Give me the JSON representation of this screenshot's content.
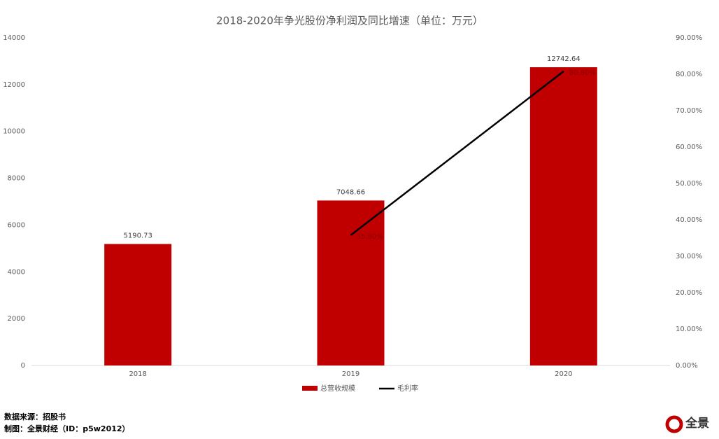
{
  "chart_data": {
    "type": "bar-line",
    "title": "2018-2020年争光股份净利润及同比增速（单位：万元）",
    "categories": [
      "2018",
      "2019",
      "2020"
    ],
    "series": [
      {
        "name": "总营收规模",
        "type": "bar",
        "color": "#c00000",
        "values": [
          5190.73,
          7048.66,
          12742.64
        ]
      },
      {
        "name": "毛利率",
        "type": "line",
        "axis": "y2",
        "color": "#000000",
        "values": [
          null,
          35.8,
          80.8
        ],
        "value_labels": [
          null,
          "35.80%",
          "80.80%"
        ]
      }
    ],
    "ylim": [
      0,
      14000
    ],
    "yticks": [
      0,
      2000,
      4000,
      6000,
      8000,
      10000,
      12000,
      14000
    ],
    "y2lim": [
      0,
      90
    ],
    "y2ticks": [
      {
        "value": 0,
        "label": "0.00%"
      },
      {
        "value": 10,
        "label": "10.00%"
      },
      {
        "value": 20,
        "label": "20.00%"
      },
      {
        "value": 30,
        "label": "30.00%"
      },
      {
        "value": 40,
        "label": "40.00%"
      },
      {
        "value": 50,
        "label": "50.00%"
      },
      {
        "value": 60,
        "label": "60.00%"
      },
      {
        "value": 70,
        "label": "70.00%"
      },
      {
        "value": 80,
        "label": "80.00%"
      },
      {
        "value": 90,
        "label": "90.00%"
      }
    ],
    "legend": "bottom",
    "source": "数据来源：招股书",
    "credit": "制图：全景财经（ID：p5w2012）",
    "logo": "全景"
  }
}
